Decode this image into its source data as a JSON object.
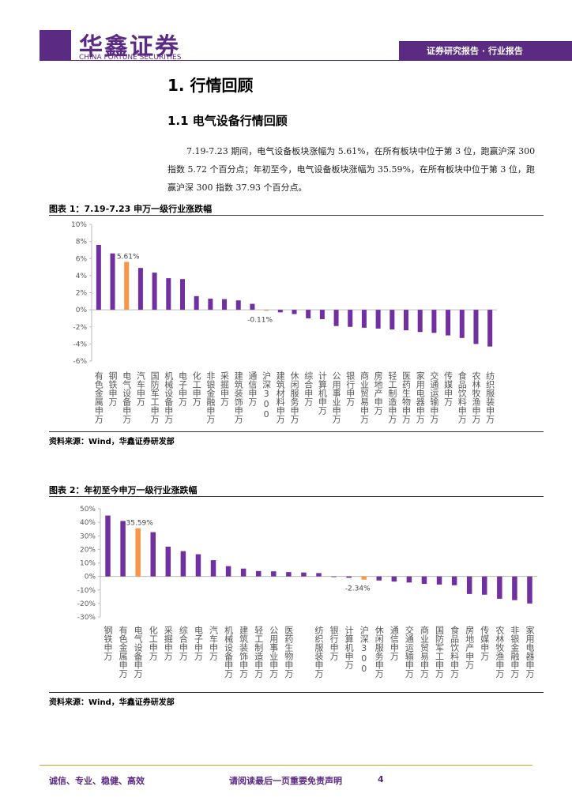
{
  "header": {
    "company": "华鑫证券",
    "company_en": "CHINA FORTUNE SECURITIES",
    "banner": "证券研究报告 · 行业报告"
  },
  "section": {
    "title": "1. 行情回顾",
    "subtitle": "1.1 电气设备行情回顾",
    "paragraph": "7.19-7.23 期间，电气设备板块涨幅为 5.61%，在所有板块中位于第 3 位，跑赢沪深 300 指数 5.72 个百分点；年初至今，电气设备板块涨幅为 35.59%，在所有板块中位于第 3 位，跑赢沪深 300 指数 37.93 个百分点。"
  },
  "chart_data": [
    {
      "type": "bar",
      "title": "图表 1：7.19-7.23 申万一级行业涨跌幅",
      "source": "资料来源：Wind，华鑫证券研发部",
      "categories": [
        "有色金属申万",
        "钢铁申万",
        "电气设备申万",
        "汽车申万",
        "国防军工申万",
        "机械设备申万",
        "电子申万",
        "化工申万",
        "非银金融申万",
        "采掘申万",
        "建筑装饰申万",
        "通信申万",
        "沪深300",
        "建筑材料申万",
        "休闲服务申万",
        "综合申万",
        "计算机申万",
        "公用事业申万",
        "银行申万",
        "商业贸易申万",
        "房地产申万",
        "轻工制造申万",
        "医药生物申万",
        "家用电器申万",
        "交通运输申万",
        "传媒申万",
        "食品饮料申万",
        "农林牧渔申万",
        "纺织服装申万"
      ],
      "values": [
        7.6,
        6.6,
        5.61,
        4.9,
        4.35,
        3.7,
        3.6,
        1.6,
        1.3,
        1.25,
        1.1,
        0.7,
        -0.11,
        -0.3,
        -0.5,
        -1.0,
        -1.1,
        -1.9,
        -2.0,
        -2.1,
        -2.2,
        -2.3,
        -2.4,
        -2.6,
        -2.7,
        -3.0,
        -3.3,
        -4.0,
        -4.3
      ],
      "value_labels": [
        null,
        null,
        "5.61%",
        null,
        null,
        null,
        null,
        null,
        null,
        null,
        null,
        null,
        "-0.11%",
        null,
        null,
        null,
        null,
        null,
        null,
        null,
        null,
        null,
        null,
        null,
        null,
        null,
        null,
        null,
        null
      ],
      "colors": [
        "#7030a0",
        "#7030a0",
        "#f79646",
        "#7030a0",
        "#7030a0",
        "#7030a0",
        "#7030a0",
        "#7030a0",
        "#7030a0",
        "#7030a0",
        "#7030a0",
        "#7030a0",
        "#f79646",
        "#7030a0",
        "#7030a0",
        "#7030a0",
        "#7030a0",
        "#7030a0",
        "#7030a0",
        "#7030a0",
        "#7030a0",
        "#7030a0",
        "#7030a0",
        "#7030a0",
        "#7030a0",
        "#7030a0",
        "#7030a0",
        "#7030a0",
        "#7030a0"
      ],
      "ylim": [
        -6,
        10
      ],
      "yticks": [
        {
          "value": 10,
          "label": "10%"
        },
        {
          "value": 8,
          "label": "8%"
        },
        {
          "value": 6,
          "label": "6%"
        },
        {
          "value": 4,
          "label": "4%"
        },
        {
          "value": 2,
          "label": "2%"
        },
        {
          "value": 0,
          "label": "0%"
        },
        {
          "value": -2,
          "label": "-2%"
        },
        {
          "value": -4,
          "label": "-4%"
        },
        {
          "value": -6,
          "label": "-6%"
        }
      ]
    },
    {
      "type": "bar",
      "title": "图表 2：年初至今申万一级行业涨跌幅",
      "source": "资料来源：Wind，华鑫证券研发部",
      "categories": [
        "钢铁申万",
        "有色金属申万",
        "电气设备申万",
        "化工申万",
        "采掘申万",
        "综合申万",
        "电子申万",
        "汽车申万",
        "机械设备申万",
        "建筑装饰申万",
        "轻工制造申万",
        "公用事业申万",
        "医药生物申万",
        null,
        "纺织服装申万",
        "银行申万",
        "计算机申万",
        "沪深300",
        "休闲服务申万",
        "通信申万",
        "交通运输申万",
        "商业贸易申万",
        "国防军工申万",
        "食品饮料申万",
        "房地产申万",
        "传媒申万",
        "农林牧渔申万",
        "非银金融申万",
        "家用电器申万"
      ],
      "values": [
        45,
        41,
        35.59,
        32.7,
        22,
        18.7,
        16.4,
        12,
        7.6,
        5.8,
        4,
        3.8,
        3.2,
        2.9,
        2.5,
        -0.5,
        -1,
        -2.34,
        -3,
        -3.8,
        -4.5,
        -5.5,
        -6,
        -6.5,
        -13,
        -13.5,
        -16.5,
        -17.5,
        -20
      ],
      "value_labels": [
        null,
        null,
        "35.59%",
        null,
        null,
        null,
        null,
        null,
        null,
        null,
        null,
        null,
        null,
        null,
        null,
        null,
        null,
        "-2.34%",
        null,
        null,
        null,
        null,
        null,
        null,
        null,
        null,
        null,
        null,
        null
      ],
      "colors": [
        "#7030a0",
        "#7030a0",
        "#f79646",
        "#7030a0",
        "#7030a0",
        "#7030a0",
        "#7030a0",
        "#7030a0",
        "#7030a0",
        "#7030a0",
        "#7030a0",
        "#7030a0",
        "#7030a0",
        "#7030a0",
        "#7030a0",
        "#7030a0",
        "#7030a0",
        "#f79646",
        "#7030a0",
        "#7030a0",
        "#7030a0",
        "#7030a0",
        "#7030a0",
        "#7030a0",
        "#7030a0",
        "#7030a0",
        "#7030a0",
        "#7030a0",
        "#7030a0"
      ],
      "ylim": [
        -30,
        50
      ],
      "yticks": [
        {
          "value": 50,
          "label": "50%"
        },
        {
          "value": 40,
          "label": "40%"
        },
        {
          "value": 30,
          "label": "30%"
        },
        {
          "value": 20,
          "label": "20%"
        },
        {
          "value": 10,
          "label": "10%"
        },
        {
          "value": 0,
          "label": "0%"
        },
        {
          "value": -10,
          "label": "-10%"
        },
        {
          "value": -20,
          "label": "-20%"
        },
        {
          "value": -30,
          "label": "-30%"
        }
      ]
    }
  ],
  "footer": {
    "motto": "诚信、专业、稳健、高效",
    "notice": "请阅读最后一页重要免责声明",
    "page": "4"
  }
}
